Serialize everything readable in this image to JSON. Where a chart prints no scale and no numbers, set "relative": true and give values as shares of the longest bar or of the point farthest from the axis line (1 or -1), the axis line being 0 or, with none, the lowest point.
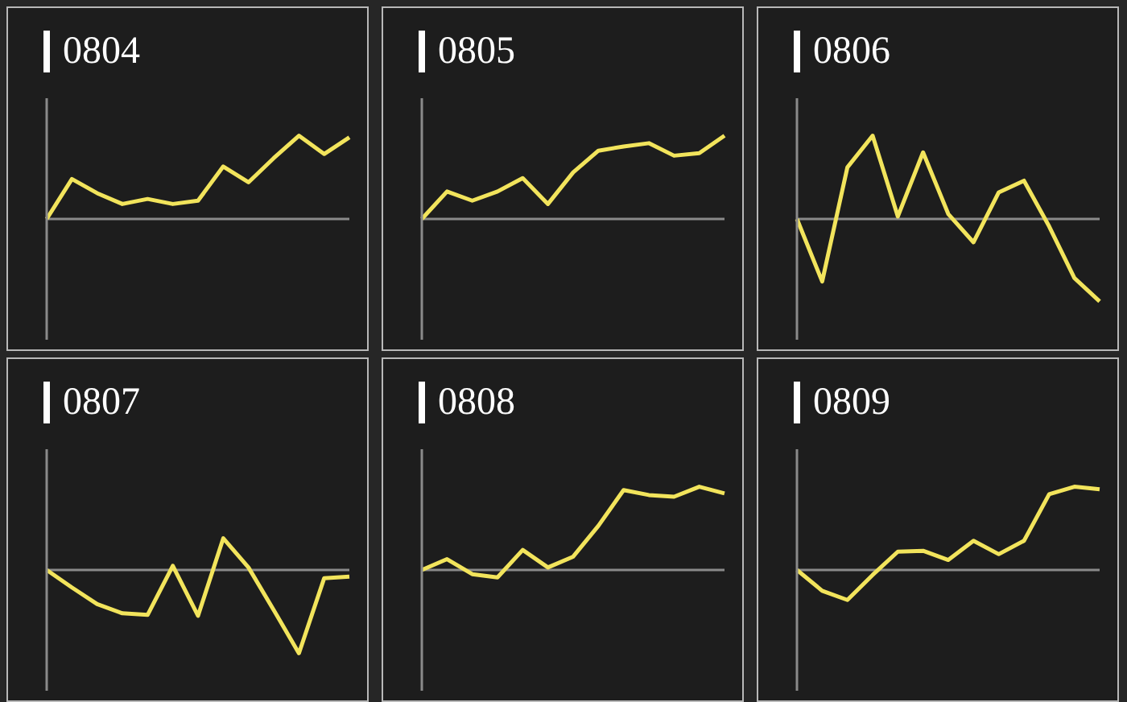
{
  "chart_data": [
    {
      "type": "line",
      "title": "0804",
      "relative": true,
      "categories": [
        null,
        null,
        null,
        null,
        null,
        null,
        null,
        null,
        null,
        null,
        null,
        null,
        null
      ],
      "series": [
        {
          "color": "#f2e45c",
          "values": [
            0,
            0.48,
            0.31,
            0.18,
            0.24,
            0.18,
            0.22,
            0.63,
            0.44,
            0.73,
            1,
            0.78,
            0.98
          ]
        }
      ]
    },
    {
      "type": "line",
      "title": "0805",
      "relative": true,
      "categories": [
        null,
        null,
        null,
        null,
        null,
        null,
        null,
        null,
        null,
        null,
        null,
        null,
        null
      ],
      "series": [
        {
          "color": "#f2e45c",
          "values": [
            0,
            0.33,
            0.22,
            0.33,
            0.49,
            0.18,
            0.56,
            0.82,
            0.87,
            0.91,
            0.76,
            0.79,
            1
          ]
        }
      ]
    },
    {
      "type": "line",
      "title": "0806",
      "relative": true,
      "categories": [
        null,
        null,
        null,
        null,
        null,
        null,
        null,
        null,
        null,
        null,
        null,
        null,
        null
      ],
      "series": [
        {
          "color": "#f2e45c",
          "values": [
            0,
            -0.75,
            0.62,
            1,
            0.03,
            0.8,
            0.06,
            -0.28,
            0.32,
            0.46,
            -0.09,
            -0.71,
            -0.99
          ]
        }
      ]
    },
    {
      "type": "line",
      "title": "0807",
      "relative": true,
      "categories": [
        null,
        null,
        null,
        null,
        null,
        null,
        null,
        null,
        null,
        null,
        null,
        null,
        null
      ],
      "series": [
        {
          "color": "#f2e45c",
          "values": [
            0,
            -0.21,
            -0.41,
            -0.52,
            -0.54,
            0.05,
            -0.55,
            0.38,
            0.03,
            -0.48,
            -1,
            -0.1,
            -0.08
          ]
        }
      ]
    },
    {
      "type": "line",
      "title": "0808",
      "relative": true,
      "categories": [
        null,
        null,
        null,
        null,
        null,
        null,
        null,
        null,
        null,
        null,
        null,
        null,
        null
      ],
      "series": [
        {
          "color": "#f2e45c",
          "values": [
            0,
            0.13,
            -0.05,
            -0.09,
            0.24,
            0.03,
            0.16,
            0.53,
            0.96,
            0.9,
            0.88,
            1,
            0.92
          ]
        }
      ]
    },
    {
      "type": "line",
      "title": "0809",
      "relative": true,
      "categories": [
        null,
        null,
        null,
        null,
        null,
        null,
        null,
        null,
        null,
        null,
        null,
        null,
        null
      ],
      "series": [
        {
          "color": "#f2e45c",
          "values": [
            0,
            -0.25,
            -0.36,
            -0.06,
            0.22,
            0.23,
            0.12,
            0.35,
            0.19,
            0.35,
            0.91,
            1,
            0.97
          ]
        }
      ]
    }
  ]
}
